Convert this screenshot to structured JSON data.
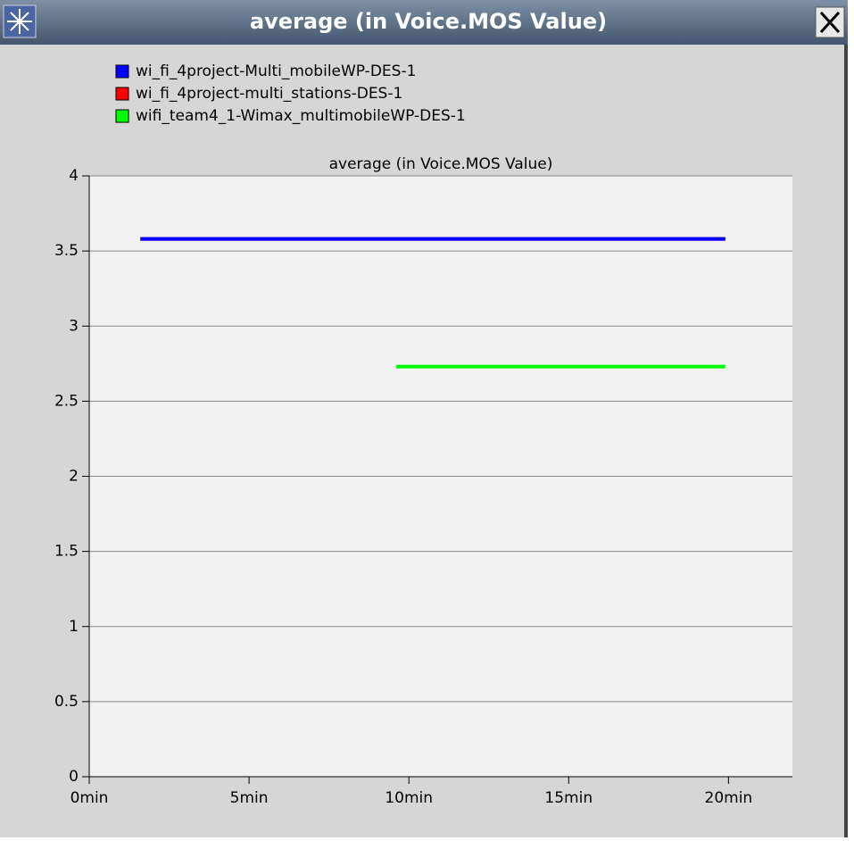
{
  "window_title": "average (in Voice.MOS Value)",
  "chart_data": {
    "type": "line",
    "title": "average (in Voice.MOS Value)",
    "series": [
      {
        "name": "wi_fi_4project-Multi_mobileWP-DES-1",
        "color": "#0000ff",
        "x": [
          1.6,
          19.9
        ],
        "values": [
          3.58,
          3.58
        ]
      },
      {
        "name": "wi_fi_4project-multi_stations-DES-1",
        "color": "#ff0000",
        "x": [
          1.6,
          19.9
        ],
        "values": [
          3.58,
          3.58
        ]
      },
      {
        "name": "wifi_team4_1-Wimax_multimobileWP-DES-1",
        "color": "#00ff00",
        "x": [
          9.6,
          19.9
        ],
        "values": [
          2.73,
          2.73
        ]
      }
    ],
    "xlim": [
      0,
      22
    ],
    "xticks": [
      {
        "value": 0,
        "label": "0min"
      },
      {
        "value": 5,
        "label": "5min"
      },
      {
        "value": 10,
        "label": "10min"
      },
      {
        "value": 15,
        "label": "15min"
      },
      {
        "value": 20,
        "label": "20min"
      }
    ],
    "ylim": [
      0,
      4
    ],
    "yticks": [
      0,
      0.5,
      1,
      1.5,
      2,
      2.5,
      3,
      3.5,
      4
    ],
    "grid": true,
    "legend": "top-left"
  }
}
